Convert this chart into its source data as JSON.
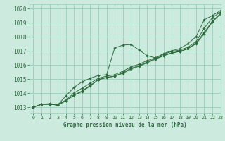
{
  "background_color": "#cceade",
  "grid_color": "#99ccb8",
  "line_color": "#2d6b3c",
  "title": "Graphe pression niveau de la mer (hPa)",
  "xlim": [
    -0.5,
    23
  ],
  "ylim": [
    1012.6,
    1020.3
  ],
  "xticks": [
    0,
    1,
    2,
    3,
    4,
    5,
    6,
    7,
    8,
    9,
    10,
    11,
    12,
    13,
    14,
    15,
    16,
    17,
    18,
    19,
    20,
    21,
    22,
    23
  ],
  "yticks": [
    1013,
    1014,
    1015,
    1016,
    1017,
    1018,
    1019,
    1020
  ],
  "series": [
    [
      1013.0,
      1013.2,
      1013.2,
      1013.15,
      1013.8,
      1014.4,
      1014.8,
      1015.05,
      1015.25,
      1015.3,
      1017.2,
      1017.4,
      1017.45,
      1017.05,
      1016.65,
      1016.5,
      1016.8,
      1017.0,
      1017.15,
      1017.5,
      1018.0,
      1019.2,
      1019.5,
      1019.85
    ],
    [
      1013.0,
      1013.2,
      1013.25,
      1013.2,
      1013.5,
      1014.0,
      1014.35,
      1014.7,
      1015.05,
      1015.2,
      1015.3,
      1015.55,
      1015.85,
      1016.05,
      1016.3,
      1016.5,
      1016.75,
      1016.95,
      1017.05,
      1017.25,
      1017.65,
      1018.6,
      1019.35,
      1019.75
    ],
    [
      1013.0,
      1013.2,
      1013.2,
      1013.15,
      1013.45,
      1013.85,
      1014.15,
      1014.55,
      1014.95,
      1015.1,
      1015.2,
      1015.45,
      1015.75,
      1015.95,
      1016.2,
      1016.45,
      1016.65,
      1016.85,
      1016.95,
      1017.15,
      1017.55,
      1018.3,
      1019.1,
      1019.65
    ],
    [
      1013.0,
      1013.2,
      1013.2,
      1013.15,
      1013.45,
      1013.85,
      1014.1,
      1014.5,
      1014.95,
      1015.1,
      1015.2,
      1015.4,
      1015.7,
      1015.9,
      1016.15,
      1016.4,
      1016.65,
      1016.85,
      1016.95,
      1017.15,
      1017.5,
      1018.2,
      1019.05,
      1019.6
    ]
  ]
}
